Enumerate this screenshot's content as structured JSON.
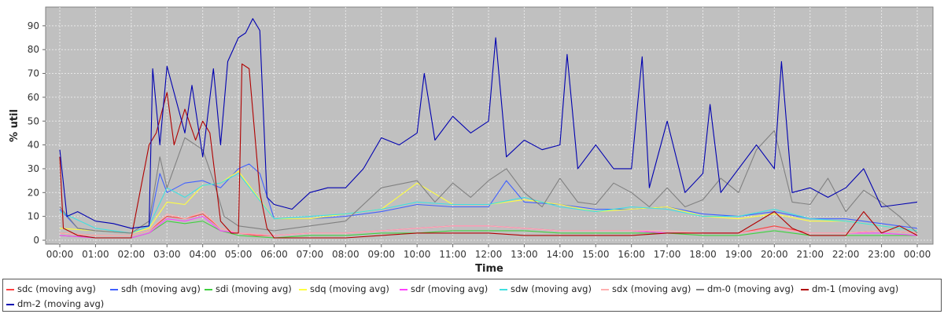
{
  "chart_data": {
    "type": "line",
    "title": "",
    "xlabel": "Time",
    "ylabel": "% util",
    "xlim": [
      0,
      24
    ],
    "ylim": [
      0,
      95
    ],
    "yticks": [
      0,
      10,
      20,
      30,
      40,
      50,
      60,
      70,
      80,
      90
    ],
    "xticks": [
      "00:00",
      "01:00",
      "02:00",
      "03:00",
      "04:00",
      "05:00",
      "06:00",
      "07:00",
      "08:00",
      "09:00",
      "10:00",
      "11:00",
      "12:00",
      "13:00",
      "14:00",
      "15:00",
      "16:00",
      "17:00",
      "18:00",
      "19:00",
      "20:00",
      "21:00",
      "22:00",
      "23:00",
      "00:00"
    ],
    "grid": true,
    "legend_position": "bottom",
    "series": [
      {
        "name": "sdc (moving avg)",
        "color": "#ff4040",
        "x": [
          0,
          1,
          2,
          2.5,
          3,
          3.5,
          4,
          4.5,
          5,
          5.5,
          6,
          7,
          8,
          9,
          10,
          11,
          12,
          13,
          14,
          15,
          16,
          17,
          18,
          19,
          20,
          21,
          22,
          23,
          24
        ],
        "y": [
          3,
          2,
          2,
          4,
          10,
          9,
          11,
          5,
          3,
          2,
          2,
          3,
          3,
          4,
          5,
          6,
          6,
          5,
          4,
          4,
          4,
          3,
          3,
          3,
          6,
          3,
          3,
          4,
          3
        ]
      },
      {
        "name": "sdh (moving avg)",
        "color": "#4060ff",
        "x": [
          0,
          0.5,
          1,
          2,
          2.5,
          2.8,
          3,
          3.5,
          4,
          4.5,
          5,
          5.3,
          5.6,
          6,
          7,
          8,
          9,
          10,
          11,
          12,
          12.5,
          13,
          14,
          15,
          16,
          17,
          18,
          19,
          20,
          21,
          22,
          23,
          24
        ],
        "y": [
          13,
          5,
          4,
          3,
          6,
          28,
          20,
          24,
          25,
          22,
          30,
          32,
          28,
          9,
          9,
          10,
          12,
          15,
          14,
          14,
          25,
          16,
          15,
          13,
          13,
          14,
          11,
          10,
          12,
          9,
          9,
          7,
          5
        ]
      },
      {
        "name": "sdi (moving avg)",
        "color": "#40d040",
        "x": [
          0,
          1,
          2,
          2.5,
          3,
          3.5,
          4,
          4.5,
          5,
          6,
          7,
          8,
          9,
          10,
          11,
          12,
          13,
          14,
          15,
          16,
          17,
          18,
          19,
          20,
          21,
          22,
          23,
          24
        ],
        "y": [
          2,
          1,
          1,
          3,
          8,
          7,
          8,
          4,
          2,
          1,
          2,
          2,
          3,
          3,
          4,
          4,
          4,
          3,
          3,
          3,
          3,
          2,
          2,
          4,
          2,
          2,
          2,
          2
        ]
      },
      {
        "name": "sdq (moving avg)",
        "color": "#ffff40",
        "x": [
          0,
          1,
          2,
          2.5,
          3,
          3.5,
          4,
          4.5,
          5,
          6,
          7,
          8,
          9,
          10,
          11,
          12,
          13,
          14,
          15,
          16,
          17,
          18,
          19,
          20,
          21,
          22,
          23,
          24
        ],
        "y": [
          5,
          4,
          3,
          5,
          16,
          15,
          23,
          24,
          29,
          9,
          9,
          11,
          13,
          24,
          15,
          15,
          17,
          15,
          12,
          13,
          14,
          10,
          9,
          11,
          8,
          8,
          6,
          4
        ]
      },
      {
        "name": "sdr (moving avg)",
        "color": "#ff40ff",
        "x": [
          0,
          1,
          2,
          2.5,
          3,
          3.5,
          4,
          4.5,
          5,
          6,
          7,
          8,
          9,
          10,
          11,
          12,
          13,
          14,
          15,
          16,
          17,
          18,
          19,
          20,
          21,
          22,
          23,
          24
        ],
        "y": [
          2,
          1,
          1,
          3,
          9,
          8,
          10,
          4,
          3,
          2,
          3,
          3,
          4,
          5,
          6,
          6,
          5,
          4,
          4,
          4,
          3,
          3,
          3,
          5,
          3,
          3,
          3,
          2
        ]
      },
      {
        "name": "sdw (moving avg)",
        "color": "#40e0e0",
        "x": [
          0,
          1,
          2,
          2.5,
          3,
          3.5,
          4,
          4.5,
          5,
          6,
          7,
          8,
          9,
          10,
          11,
          12,
          13,
          14,
          15,
          16,
          17,
          18,
          19,
          20,
          21,
          22,
          23,
          24
        ],
        "y": [
          12,
          5,
          3,
          6,
          22,
          18,
          23,
          24,
          28,
          9,
          10,
          11,
          13,
          16,
          15,
          15,
          18,
          14,
          12,
          14,
          13,
          10,
          10,
          13,
          9,
          8,
          6,
          4
        ]
      },
      {
        "name": "sdx (moving avg)",
        "color": "#ffb0b0",
        "x": [
          0,
          1,
          2,
          2.5,
          3,
          3.5,
          4,
          4.5,
          5,
          6,
          7,
          8,
          9,
          10,
          11,
          12,
          13,
          14,
          15,
          16,
          17,
          18,
          19,
          20,
          21,
          22,
          23,
          24
        ],
        "y": [
          3,
          2,
          2,
          4,
          11,
          9,
          12,
          5,
          3,
          2,
          3,
          3,
          4,
          5,
          6,
          6,
          5,
          4,
          4,
          4,
          4,
          3,
          3,
          5,
          3,
          3,
          4,
          3
        ]
      },
      {
        "name": "dm-0 (moving avg)",
        "color": "#808080",
        "x": [
          0,
          0.5,
          1,
          2,
          2.5,
          2.8,
          3,
          3.5,
          4,
          4.3,
          4.6,
          5,
          5.5,
          6,
          7,
          8,
          9,
          10,
          10.5,
          11,
          11.5,
          12,
          12.5,
          13,
          13.5,
          14,
          14.5,
          15,
          15.5,
          16,
          16.5,
          17,
          17.5,
          18,
          18.5,
          19,
          19.5,
          20,
          20.5,
          21,
          21.5,
          22,
          22.5,
          23,
          23.5,
          24
        ],
        "y": [
          14,
          5,
          4,
          3,
          8,
          35,
          22,
          43,
          38,
          25,
          10,
          6,
          5,
          4,
          6,
          8,
          22,
          25,
          16,
          24,
          18,
          25,
          30,
          20,
          14,
          26,
          16,
          15,
          24,
          20,
          14,
          22,
          14,
          17,
          26,
          20,
          38,
          46,
          16,
          15,
          26,
          12,
          21,
          16,
          10,
          3
        ]
      },
      {
        "name": "dm-1 (moving avg)",
        "color": "#b00000",
        "x": [
          0,
          0.1,
          0.5,
          1,
          2,
          2.5,
          2.7,
          3,
          3.2,
          3.5,
          3.8,
          4,
          4.2,
          4.5,
          4.8,
          5,
          5.1,
          5.3,
          5.6,
          5.8,
          6,
          7,
          8,
          9,
          10,
          11,
          12,
          13,
          14,
          15,
          16,
          17,
          18,
          19,
          20,
          20.5,
          21,
          22,
          22.5,
          23,
          23.5,
          24
        ],
        "y": [
          35,
          5,
          2,
          1,
          1,
          40,
          45,
          62,
          40,
          55,
          42,
          50,
          45,
          8,
          3,
          3,
          74,
          72,
          20,
          5,
          1,
          1,
          1,
          2,
          3,
          3,
          3,
          2,
          2,
          2,
          2,
          3,
          3,
          3,
          12,
          5,
          2,
          2,
          12,
          3,
          6,
          2
        ]
      },
      {
        "name": "dm-2 (moving avg)",
        "color": "#0000b0",
        "x": [
          0,
          0.2,
          0.5,
          1,
          1.5,
          2,
          2.5,
          2.6,
          2.8,
          3,
          3.5,
          3.7,
          4,
          4.3,
          4.5,
          4.7,
          5,
          5.2,
          5.4,
          5.6,
          5.8,
          6,
          6.5,
          7,
          7.5,
          8,
          8.5,
          9,
          9.5,
          10,
          10.2,
          10.5,
          11,
          11.5,
          12,
          12.2,
          12.5,
          13,
          13.5,
          14,
          14.2,
          14.5,
          15,
          15.5,
          16,
          16.3,
          16.5,
          17,
          17.5,
          18,
          18.2,
          18.5,
          19,
          19.5,
          20,
          20.2,
          20.5,
          21,
          21.5,
          22,
          22.5,
          23,
          23.5,
          24
        ],
        "y": [
          38,
          10,
          12,
          8,
          7,
          5,
          6,
          72,
          40,
          73,
          45,
          65,
          35,
          72,
          40,
          75,
          85,
          87,
          93,
          88,
          18,
          15,
          13,
          20,
          22,
          22,
          30,
          43,
          40,
          45,
          70,
          42,
          52,
          45,
          50,
          85,
          35,
          42,
          38,
          40,
          78,
          30,
          40,
          30,
          30,
          77,
          22,
          50,
          20,
          28,
          57,
          20,
          30,
          40,
          30,
          75,
          20,
          22,
          18,
          22,
          30,
          14,
          15,
          16
        ]
      }
    ]
  }
}
